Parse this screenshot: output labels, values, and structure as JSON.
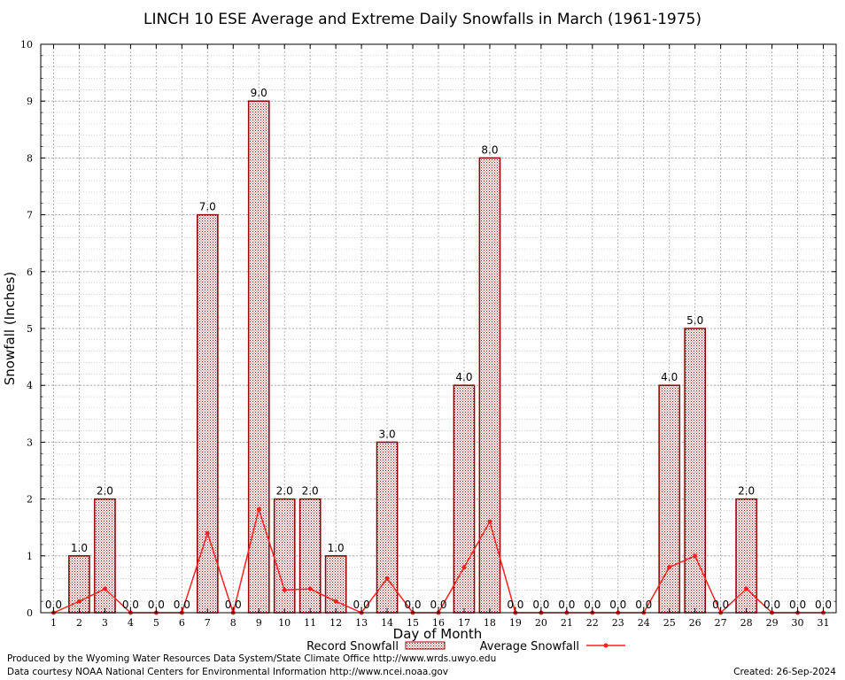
{
  "chart_data": {
    "type": "bar",
    "title": "LINCH 10 ESE Average and Extreme Daily Snowfalls in March (1961-1975)",
    "xlabel": "Day of Month",
    "ylabel": "Snowfall (Inches)",
    "ylim": [
      0,
      10
    ],
    "yticks": [
      0,
      1,
      2,
      3,
      4,
      5,
      6,
      7,
      8,
      9,
      10
    ],
    "grid": true,
    "legend_position": "bottom",
    "categories": [
      "1",
      "2",
      "3",
      "4",
      "5",
      "6",
      "7",
      "8",
      "9",
      "10",
      "11",
      "12",
      "13",
      "14",
      "15",
      "16",
      "17",
      "18",
      "19",
      "20",
      "21",
      "22",
      "23",
      "24",
      "25",
      "26",
      "27",
      "28",
      "29",
      "30",
      "31"
    ],
    "series": [
      {
        "name": "Record Snowfall",
        "type": "bar",
        "values": [
          0,
          1,
          2,
          0,
          0,
          0,
          7,
          0,
          9,
          2,
          2,
          1,
          0,
          3,
          0,
          0,
          4,
          8,
          0,
          0,
          0,
          0,
          0,
          0,
          4,
          5,
          0,
          2,
          0,
          0,
          0
        ],
        "data_labels": [
          "0.0",
          "1.0",
          "2.0",
          "0.0",
          "0.0",
          "0.0",
          "7.0",
          "0.0",
          "9.0",
          "2.0",
          "2.0",
          "1.0",
          "0.0",
          "3.0",
          "0.0",
          "0.0",
          "4.0",
          "8.0",
          "0.0",
          "0.0",
          "0.0",
          "0.0",
          "0.0",
          "0.0",
          "4.0",
          "5.0",
          "0.0",
          "2.0",
          "0.0",
          "0.0",
          "0.0"
        ],
        "color": "#8b0000"
      },
      {
        "name": "Average Snowfall",
        "type": "line",
        "values": [
          0,
          0.2,
          0.42,
          0,
          0,
          0,
          1.4,
          0,
          1.82,
          0.4,
          0.42,
          0.2,
          0,
          0.6,
          0,
          0,
          0.8,
          1.6,
          0,
          0,
          0,
          0,
          0,
          0,
          0.8,
          1.0,
          0,
          0.42,
          0,
          0,
          0
        ],
        "color": "#ff2020"
      }
    ]
  },
  "footer": {
    "line1": "Produced by the Wyoming Water Resources Data System/State Climate Office http://www.wrds.uwyo.edu",
    "line2": "Data courtesy NOAA National Centers for Environmental Information http://www.ncei.noaa.gov",
    "created": "Created:  26-Sep-2024"
  }
}
